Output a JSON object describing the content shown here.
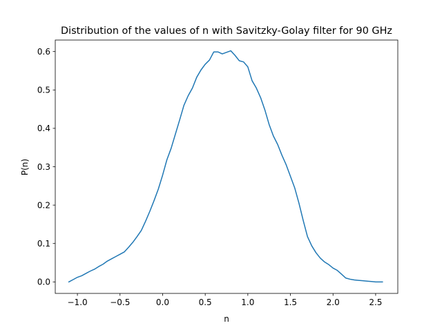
{
  "chart_data": {
    "type": "line",
    "title": "Distribution of the values of n with Savitzky-Golay filter for 90 GHz",
    "xlabel": "n",
    "ylabel": "P(n)",
    "xlim": [
      -1.26,
      2.76
    ],
    "ylim": [
      -0.03,
      0.63
    ],
    "xticks": [
      -1.0,
      -0.5,
      0.0,
      0.5,
      1.0,
      1.5,
      2.0,
      2.5
    ],
    "xtick_labels": [
      "−1.0",
      "−0.5",
      "0.0",
      "0.5",
      "1.0",
      "1.5",
      "2.0",
      "2.5"
    ],
    "yticks": [
      0.0,
      0.1,
      0.2,
      0.3,
      0.4,
      0.5,
      0.6
    ],
    "ytick_labels": [
      "0.0",
      "0.1",
      "0.2",
      "0.3",
      "0.4",
      "0.5",
      "0.6"
    ],
    "grid": false,
    "color": "#1f77b4",
    "series": [
      {
        "x": [
          -1.1,
          -1.05,
          -1.0,
          -0.95,
          -0.9,
          -0.85,
          -0.8,
          -0.75,
          -0.7,
          -0.65,
          -0.6,
          -0.55,
          -0.5,
          -0.45,
          -0.4,
          -0.35,
          -0.3,
          -0.25,
          -0.2,
          -0.15,
          -0.1,
          -0.05,
          0.0,
          0.05,
          0.1,
          0.15,
          0.2,
          0.25,
          0.3,
          0.35,
          0.4,
          0.45,
          0.5,
          0.55,
          0.6,
          0.65,
          0.7,
          0.75,
          0.8,
          0.85,
          0.9,
          0.95,
          1.0,
          1.05,
          1.1,
          1.15,
          1.2,
          1.25,
          1.3,
          1.35,
          1.4,
          1.45,
          1.5,
          1.55,
          1.6,
          1.65,
          1.7,
          1.75,
          1.8,
          1.85,
          1.9,
          1.95,
          2.0,
          2.05,
          2.1,
          2.15,
          2.2,
          2.25,
          2.3,
          2.35,
          2.4,
          2.45,
          2.5,
          2.55,
          2.58
        ],
        "y": [
          0.0,
          0.006,
          0.012,
          0.016,
          0.022,
          0.028,
          0.033,
          0.04,
          0.046,
          0.054,
          0.06,
          0.066,
          0.072,
          0.078,
          0.09,
          0.103,
          0.118,
          0.134,
          0.158,
          0.184,
          0.212,
          0.242,
          0.278,
          0.318,
          0.348,
          0.385,
          0.422,
          0.46,
          0.485,
          0.505,
          0.533,
          0.552,
          0.567,
          0.578,
          0.599,
          0.599,
          0.594,
          0.598,
          0.602,
          0.59,
          0.576,
          0.573,
          0.56,
          0.524,
          0.505,
          0.48,
          0.448,
          0.41,
          0.38,
          0.358,
          0.33,
          0.305,
          0.275,
          0.245,
          0.205,
          0.16,
          0.118,
          0.094,
          0.076,
          0.062,
          0.052,
          0.045,
          0.036,
          0.03,
          0.02,
          0.01,
          0.007,
          0.005,
          0.004,
          0.003,
          0.002,
          0.001,
          0.0,
          0.0,
          0.0
        ]
      }
    ]
  }
}
